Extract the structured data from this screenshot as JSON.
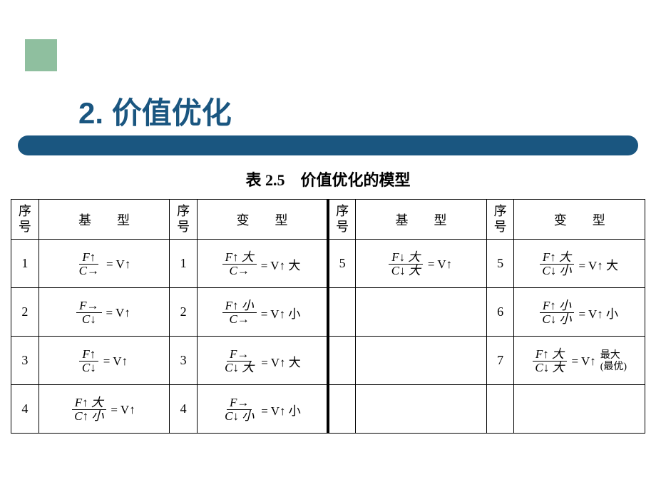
{
  "title": "2. 价值优化",
  "caption": "表 2.5　价值优化的模型",
  "headers": {
    "seq": "序号",
    "base": "基　　型",
    "variant": "变　　型"
  },
  "rows_left": [
    {
      "n1": "1",
      "f1_num": "F↑",
      "f1_den": "C→",
      "f1_res": "= V↑",
      "n2": "1",
      "f2_num": "F↑ 大",
      "f2_den": "C→",
      "f2_res": "= V↑ 大"
    },
    {
      "n1": "2",
      "f1_num": "F→",
      "f1_den": "C↓",
      "f1_res": "= V↑",
      "n2": "2",
      "f2_num": "F↑ 小",
      "f2_den": "C→",
      "f2_res": "= V↑ 小"
    },
    {
      "n1": "3",
      "f1_num": "F↑",
      "f1_den": "C↓",
      "f1_res": "= V↑",
      "n2": "3",
      "f2_num": "F→",
      "f2_den": "C↓ 大",
      "f2_res": "= V↑ 大"
    },
    {
      "n1": "4",
      "f1_num": "F↑ 大",
      "f1_den": "C↑ 小",
      "f1_res": "= V↑",
      "n2": "4",
      "f2_num": "F→",
      "f2_den": "C↓ 小",
      "f2_res": "= V↑ 小"
    }
  ],
  "rows_right": [
    {
      "n1": "5",
      "f1_num": "F↓ 大",
      "f1_den": "C↓ 大",
      "f1_res": "= V↑",
      "n2": "5",
      "f2_num": "F↑ 大",
      "f2_den": "C↓ 小",
      "f2_res": "= V↑ 大"
    },
    {
      "n1": "",
      "f1_num": "",
      "f1_den": "",
      "f1_res": "",
      "n2": "6",
      "f2_num": "F↑ 小",
      "f2_den": "C↓ 小",
      "f2_res": "= V↑ 小"
    },
    {
      "n1": "",
      "f1_num": "",
      "f1_den": "",
      "f1_res": "",
      "n2": "7",
      "f2_num": "F↑ 大",
      "f2_den": "C↓ 大",
      "f2_res": "= V↑",
      "extra": "最大\n(最优)"
    },
    {
      "n1": "",
      "f1_num": "",
      "f1_den": "",
      "f1_res": "",
      "n2": "",
      "f2_num": "",
      "f2_den": "",
      "f2_res": ""
    }
  ],
  "colors": {
    "accent": "#8fbf9f",
    "banner": "#1a5680",
    "title": "#1a5680",
    "background": "#ffffff"
  }
}
